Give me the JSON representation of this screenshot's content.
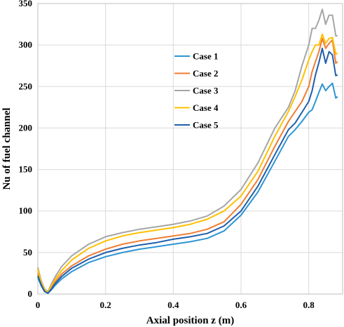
{
  "chart_data": {
    "type": "line",
    "title": "",
    "xlabel": "Axial position z (m)",
    "ylabel": "Nu of fuel channel",
    "xlim": [
      0,
      0.9
    ],
    "ylim": [
      0,
      350
    ],
    "x_ticks": [
      "0",
      "0.2",
      "0.4",
      "0.6",
      "0.8"
    ],
    "x_tick_values": [
      0,
      0.2,
      0.4,
      0.6,
      0.8
    ],
    "y_ticks": [
      "0",
      "50",
      "100",
      "150",
      "200",
      "250",
      "300",
      "350"
    ],
    "y_tick_values": [
      0,
      50,
      100,
      150,
      200,
      250,
      300,
      350
    ],
    "grid": "vertical-and-horizontal",
    "legend_position": "center-right",
    "series": [
      {
        "name": "Case 1",
        "color": "#2E95D3",
        "x": [
          0.0,
          0.01,
          0.02,
          0.03,
          0.04,
          0.05,
          0.07,
          0.1,
          0.15,
          0.2,
          0.25,
          0.3,
          0.35,
          0.4,
          0.45,
          0.5,
          0.55,
          0.6,
          0.65,
          0.7,
          0.74,
          0.76,
          0.78,
          0.8,
          0.81,
          0.82,
          0.83,
          0.84,
          0.85,
          0.86,
          0.87,
          0.88,
          0.885
        ],
        "y": [
          20,
          10,
          3,
          1,
          5,
          10,
          18,
          27,
          38,
          45,
          50,
          54,
          57,
          60,
          63,
          67,
          76,
          95,
          123,
          160,
          190,
          198,
          208,
          219,
          222,
          232,
          243,
          253,
          245,
          250,
          254,
          236,
          238
        ]
      },
      {
        "name": "Case 2",
        "color": "#F07D32",
        "x": [
          0.0,
          0.01,
          0.02,
          0.03,
          0.04,
          0.05,
          0.07,
          0.1,
          0.15,
          0.2,
          0.25,
          0.3,
          0.35,
          0.4,
          0.45,
          0.5,
          0.55,
          0.6,
          0.65,
          0.7,
          0.74,
          0.76,
          0.78,
          0.8,
          0.81,
          0.82,
          0.83,
          0.84,
          0.85,
          0.86,
          0.87,
          0.88,
          0.885
        ],
        "y": [
          25,
          12,
          4,
          2,
          8,
          14,
          24,
          34,
          46,
          54,
          60,
          64,
          67,
          70,
          73,
          78,
          87,
          108,
          138,
          178,
          208,
          220,
          232,
          250,
          268,
          280,
          292,
          308,
          296,
          302,
          306,
          278,
          280
        ]
      },
      {
        "name": "Case 3",
        "color": "#A6A6A6",
        "x": [
          0.0,
          0.01,
          0.02,
          0.03,
          0.04,
          0.05,
          0.07,
          0.1,
          0.15,
          0.2,
          0.25,
          0.3,
          0.35,
          0.4,
          0.45,
          0.5,
          0.55,
          0.6,
          0.65,
          0.7,
          0.74,
          0.76,
          0.78,
          0.8,
          0.81,
          0.82,
          0.83,
          0.84,
          0.85,
          0.86,
          0.87,
          0.88,
          0.885
        ],
        "y": [
          32,
          16,
          6,
          3,
          12,
          20,
          33,
          46,
          60,
          69,
          74,
          78,
          81,
          84,
          88,
          94,
          106,
          126,
          158,
          200,
          225,
          245,
          275,
          300,
          320,
          320,
          330,
          343,
          325,
          336,
          336,
          311,
          311
        ]
      },
      {
        "name": "Case 4",
        "color": "#FFC000",
        "x": [
          0.0,
          0.01,
          0.02,
          0.03,
          0.04,
          0.05,
          0.07,
          0.1,
          0.15,
          0.2,
          0.25,
          0.3,
          0.35,
          0.4,
          0.45,
          0.5,
          0.55,
          0.6,
          0.65,
          0.7,
          0.74,
          0.76,
          0.78,
          0.8,
          0.81,
          0.82,
          0.83,
          0.84,
          0.85,
          0.86,
          0.87,
          0.88,
          0.885
        ],
        "y": [
          30,
          14,
          5,
          2,
          10,
          17,
          28,
          41,
          55,
          64,
          70,
          74,
          77,
          80,
          84,
          90,
          100,
          118,
          148,
          190,
          220,
          238,
          258,
          282,
          292,
          300,
          300,
          313,
          302,
          308,
          309,
          289,
          290
        ]
      },
      {
        "name": "Case 5",
        "color": "#1F5FAD",
        "x": [
          0.0,
          0.01,
          0.02,
          0.03,
          0.04,
          0.05,
          0.07,
          0.1,
          0.15,
          0.2,
          0.25,
          0.3,
          0.35,
          0.4,
          0.45,
          0.5,
          0.55,
          0.6,
          0.65,
          0.7,
          0.74,
          0.76,
          0.78,
          0.8,
          0.81,
          0.82,
          0.83,
          0.84,
          0.85,
          0.86,
          0.87,
          0.88,
          0.885
        ],
        "y": [
          22,
          11,
          3,
          1,
          6,
          12,
          21,
          31,
          42,
          50,
          55,
          59,
          62,
          66,
          69,
          73,
          82,
          100,
          130,
          168,
          198,
          206,
          219,
          232,
          245,
          264,
          279,
          296,
          278,
          292,
          288,
          263,
          264
        ]
      }
    ]
  }
}
